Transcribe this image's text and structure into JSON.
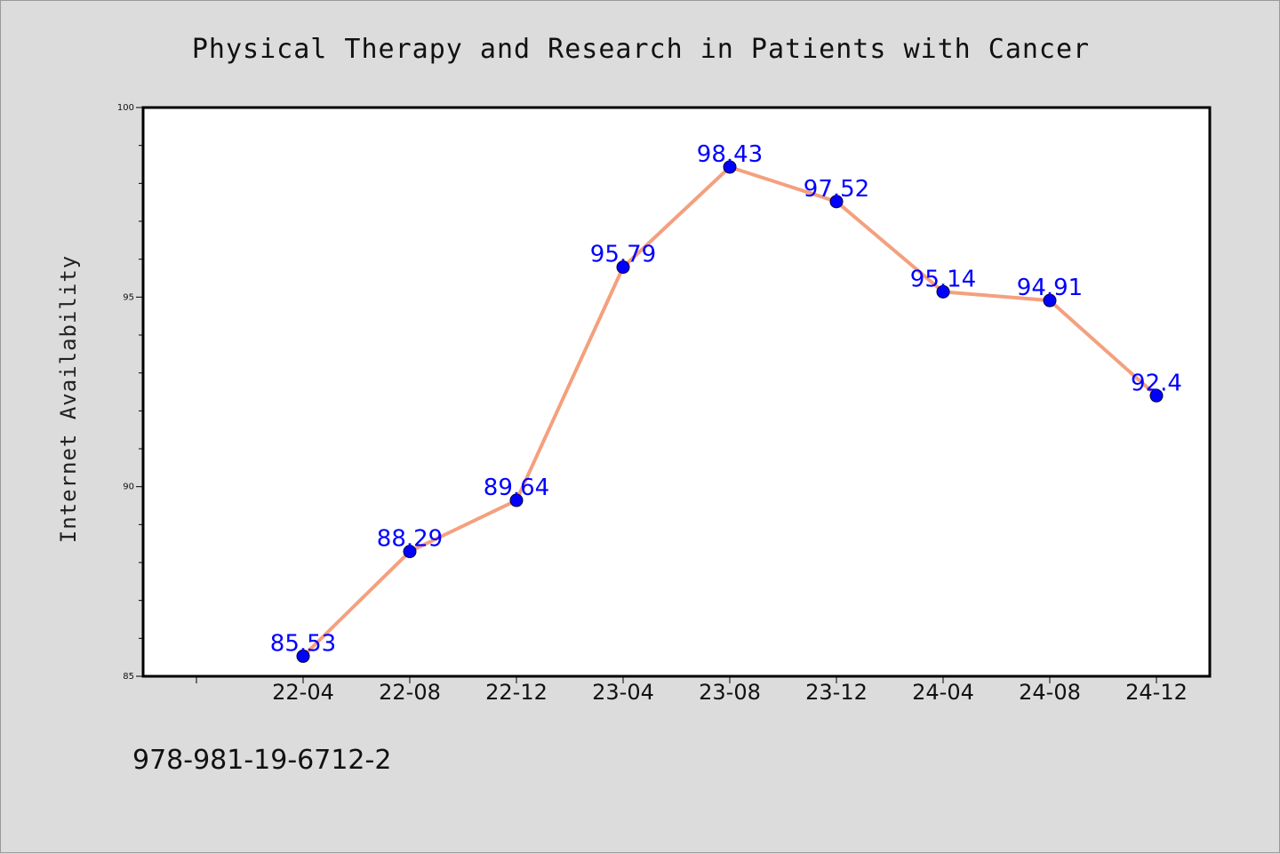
{
  "chart_data": {
    "type": "line",
    "title": "Physical Therapy and Research in Patients with Cancer",
    "xlabel": "",
    "ylabel": "Internet Availability",
    "categories": [
      "22-04",
      "22-08",
      "22-12",
      "23-04",
      "23-08",
      "23-12",
      "24-04",
      "24-08",
      "24-12"
    ],
    "series": [
      {
        "values": [
          85.53,
          88.29,
          89.64,
          95.79,
          98.43,
          97.52,
          95.14,
          94.91,
          92.4
        ],
        "labels": [
          "85.53",
          "88.29",
          "89.64",
          "95.79",
          "98.43",
          "97.52",
          "95.14",
          "94.91",
          "92.4"
        ],
        "line_color": "#f4a07e",
        "marker_color": "#0000ff"
      }
    ],
    "ylim": [
      85,
      100
    ],
    "yticks": [
      85,
      90,
      95,
      100
    ],
    "ytick_labels": [
      "85",
      "90",
      "95",
      "100"
    ],
    "grid": false,
    "legend": "none"
  },
  "footer": {
    "isbn": "978-981-19-6712-2"
  },
  "colors": {
    "background": "#dcdcdc",
    "plot_background": "#ffffff",
    "label_color": "#0000ff"
  }
}
